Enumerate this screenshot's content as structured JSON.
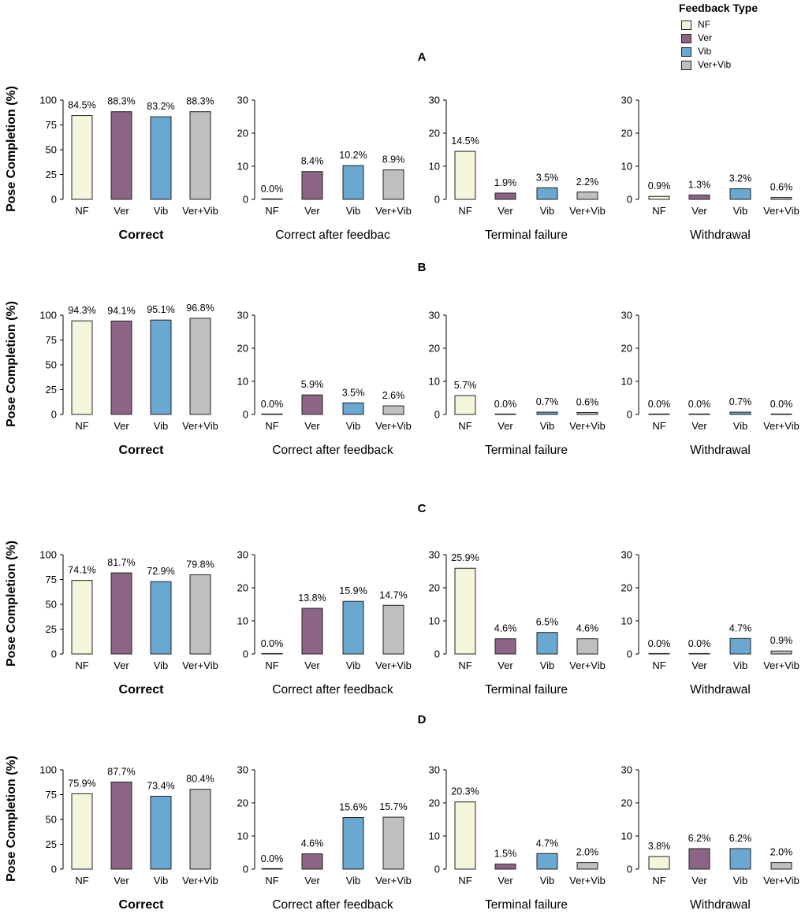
{
  "legend": {
    "title": "Feedback Type",
    "items": [
      {
        "label": "NF",
        "color": "#f5f5dc"
      },
      {
        "label": "Ver",
        "color": "#8c6586"
      },
      {
        "label": "Vib",
        "color": "#6aa8d2"
      },
      {
        "label": "Ver+Vib",
        "color": "#bfbfbf"
      }
    ]
  },
  "y_axis_label": "Pose Completion (%)",
  "chart_data": [
    {
      "panel": "A",
      "type": "bar",
      "charts": [
        {
          "title": "Correct",
          "categories": [
            "NF",
            "Ver",
            "Vib",
            "Ver+Vib"
          ],
          "values": [
            84.5,
            88.3,
            83.2,
            88.3
          ],
          "labels": [
            "84.5%",
            "88.3%",
            "83.2%",
            "88.3%"
          ],
          "ylim": [
            0,
            100
          ],
          "yticks": [
            0,
            25,
            50,
            75,
            100
          ]
        },
        {
          "title": "Correct after feedbac",
          "categories": [
            "NF",
            "Ver",
            "Vib",
            "Ver+Vib"
          ],
          "values": [
            0.0,
            8.4,
            10.2,
            8.9
          ],
          "labels": [
            "0.0%",
            "8.4%",
            "10.2%",
            "8.9%"
          ],
          "ylim": [
            0,
            30
          ],
          "yticks": [
            0,
            10,
            20,
            30
          ]
        },
        {
          "title": "Terminal failure",
          "categories": [
            "NF",
            "Ver",
            "Vib",
            "Ver+Vib"
          ],
          "values": [
            14.5,
            1.9,
            3.5,
            2.2
          ],
          "labels": [
            "14.5%",
            "1.9%",
            "3.5%",
            "2.2%"
          ],
          "ylim": [
            0,
            30
          ],
          "yticks": [
            0,
            10,
            20,
            30
          ]
        },
        {
          "title": "Withdrawal",
          "categories": [
            "NF",
            "Ver",
            "Vib",
            "Ver+Vib"
          ],
          "values": [
            0.9,
            1.3,
            3.2,
            0.6
          ],
          "labels": [
            "0.9%",
            "1.3%",
            "3.2%",
            "0.6%"
          ],
          "ylim": [
            0,
            30
          ],
          "yticks": [
            0,
            10,
            20,
            30
          ]
        }
      ]
    },
    {
      "panel": "B",
      "type": "bar",
      "charts": [
        {
          "title": "Correct",
          "categories": [
            "NF",
            "Ver",
            "Vib",
            "Ver+Vib"
          ],
          "values": [
            94.3,
            94.1,
            95.1,
            96.8
          ],
          "labels": [
            "94.3%",
            "94.1%",
            "95.1%",
            "96.8%"
          ],
          "ylim": [
            0,
            100
          ],
          "yticks": [
            0,
            25,
            50,
            75,
            100
          ]
        },
        {
          "title": "Correct after feedback",
          "categories": [
            "NF",
            "Ver",
            "Vib",
            "Ver+Vib"
          ],
          "values": [
            0.0,
            5.9,
            3.5,
            2.6
          ],
          "labels": [
            "0.0%",
            "5.9%",
            "3.5%",
            "2.6%"
          ],
          "ylim": [
            0,
            30
          ],
          "yticks": [
            0,
            10,
            20,
            30
          ]
        },
        {
          "title": "Terminal failure",
          "categories": [
            "NF",
            "Ver",
            "Vib",
            "Ver+Vib"
          ],
          "values": [
            5.7,
            0.0,
            0.7,
            0.6
          ],
          "labels": [
            "5.7%",
            "0.0%",
            "0.7%",
            "0.6%"
          ],
          "ylim": [
            0,
            30
          ],
          "yticks": [
            0,
            10,
            20,
            30
          ]
        },
        {
          "title": "Withdrawal",
          "categories": [
            "NF",
            "Ver",
            "Vib",
            "Ver+Vib"
          ],
          "values": [
            0.0,
            0.0,
            0.7,
            0.0
          ],
          "labels": [
            "0.0%",
            "0.0%",
            "0.7%",
            "0.0%"
          ],
          "ylim": [
            0,
            30
          ],
          "yticks": [
            0,
            10,
            20,
            30
          ]
        }
      ]
    },
    {
      "panel": "C",
      "type": "bar",
      "charts": [
        {
          "title": "Correct",
          "categories": [
            "NF",
            "Ver",
            "Vib",
            "Ver+Vib"
          ],
          "values": [
            74.1,
            81.7,
            72.9,
            79.8
          ],
          "labels": [
            "74.1%",
            "81.7%",
            "72.9%",
            "79.8%"
          ],
          "ylim": [
            0,
            100
          ],
          "yticks": [
            0,
            25,
            50,
            75,
            100
          ]
        },
        {
          "title": "Correct after feedback",
          "categories": [
            "NF",
            "Ver",
            "Vib",
            "Ver+Vib"
          ],
          "values": [
            0.0,
            13.8,
            15.9,
            14.7
          ],
          "labels": [
            "0.0%",
            "13.8%",
            "15.9%",
            "14.7%"
          ],
          "ylim": [
            0,
            30
          ],
          "yticks": [
            0,
            10,
            20,
            30
          ]
        },
        {
          "title": "Terminal failure",
          "categories": [
            "NF",
            "Ver",
            "Vib",
            "Ver+Vib"
          ],
          "values": [
            25.9,
            4.6,
            6.5,
            4.6
          ],
          "labels": [
            "25.9%",
            "4.6%",
            "6.5%",
            "4.6%"
          ],
          "ylim": [
            0,
            30
          ],
          "yticks": [
            0,
            10,
            20,
            30
          ]
        },
        {
          "title": "Withdrawal",
          "categories": [
            "NF",
            "Ver",
            "Vib",
            "Ver+Vib"
          ],
          "values": [
            0.0,
            0.0,
            4.7,
            0.9
          ],
          "labels": [
            "0.0%",
            "0.0%",
            "4.7%",
            "0.9%"
          ],
          "ylim": [
            0,
            30
          ],
          "yticks": [
            0,
            10,
            20,
            30
          ]
        }
      ]
    },
    {
      "panel": "D",
      "type": "bar",
      "charts": [
        {
          "title": "Correct",
          "categories": [
            "NF",
            "Ver",
            "Vib",
            "Ver+Vib"
          ],
          "values": [
            75.9,
            87.7,
            73.4,
            80.4
          ],
          "labels": [
            "75.9%",
            "87.7%",
            "73.4%",
            "80.4%"
          ],
          "ylim": [
            0,
            100
          ],
          "yticks": [
            0,
            25,
            50,
            75,
            100
          ]
        },
        {
          "title": "Correct after feedback",
          "categories": [
            "NF",
            "Ver",
            "Vib",
            "Ver+Vib"
          ],
          "values": [
            0.0,
            4.6,
            15.6,
            15.7
          ],
          "labels": [
            "0.0%",
            "4.6%",
            "15.6%",
            "15.7%"
          ],
          "ylim": [
            0,
            30
          ],
          "yticks": [
            0,
            10,
            20,
            30
          ]
        },
        {
          "title": "Terminal failure",
          "categories": [
            "NF",
            "Ver",
            "Vib",
            "Ver+Vib"
          ],
          "values": [
            20.3,
            1.5,
            4.7,
            2.0
          ],
          "labels": [
            "20.3%",
            "1.5%",
            "4.7%",
            "2.0%"
          ],
          "ylim": [
            0,
            30
          ],
          "yticks": [
            0,
            10,
            20,
            30
          ]
        },
        {
          "title": "Withdrawal",
          "categories": [
            "NF",
            "Ver",
            "Vib",
            "Ver+Vib"
          ],
          "values": [
            3.8,
            6.2,
            6.2,
            2.0
          ],
          "labels": [
            "3.8%",
            "6.2%",
            "6.2%",
            "2.0%"
          ],
          "ylim": [
            0,
            30
          ],
          "yticks": [
            0,
            10,
            20,
            30
          ]
        }
      ]
    }
  ]
}
